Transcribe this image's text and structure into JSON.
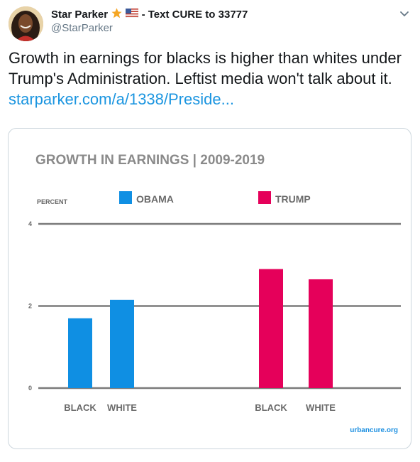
{
  "tweet": {
    "display_name": "Star Parker",
    "display_name_suffix": "- Text CURE to 33777",
    "handle": "@StarParker",
    "text": "Growth in earnings for blacks is higher than whites under Trump's Administration. Leftist media won't talk about it.",
    "link_text": "starparker.com/a/1338/Preside..."
  },
  "icons": [
    "star-icon",
    "us-flag-icon",
    "chevron-down-icon"
  ],
  "colors": {
    "obama": "#0f8fe3",
    "trump": "#e5005a",
    "link": "#1b95e0",
    "grid": "#7a7a7a",
    "label": "#666666",
    "watermark": "#1a8ee0"
  },
  "chart_data": {
    "type": "bar",
    "title": "GROWTH IN EARNINGS | 2009-2019",
    "ylabel": "PERCENT",
    "ylim": [
      0,
      4
    ],
    "yticks": [
      "0",
      "2",
      "4"
    ],
    "grid": true,
    "legend_position": "top",
    "series": [
      {
        "name": "OBAMA",
        "categories": [
          "BLACK",
          "WHITE"
        ],
        "values": [
          1.7,
          2.15
        ]
      },
      {
        "name": "TRUMP",
        "categories": [
          "BLACK",
          "WHITE"
        ],
        "values": [
          2.9,
          2.65
        ]
      }
    ],
    "watermark": "urbancure.org"
  }
}
